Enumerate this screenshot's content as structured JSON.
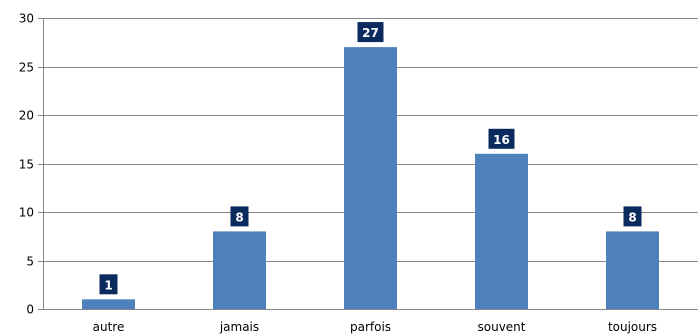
{
  "chart_data": {
    "type": "bar",
    "categories": [
      "autre",
      "jamais",
      "parfois",
      "souvent",
      "toujours"
    ],
    "values": [
      1,
      8,
      27,
      16,
      8
    ],
    "data_labels": [
      "1",
      "8",
      "27",
      "16",
      "8"
    ],
    "yticks": [
      0,
      5,
      10,
      15,
      20,
      25,
      30
    ],
    "ylim": [
      0,
      30
    ],
    "grid": true,
    "bar_color": "#4f81bd",
    "label_bg_color": "#0b2b5e",
    "grid_color": "#868686"
  }
}
